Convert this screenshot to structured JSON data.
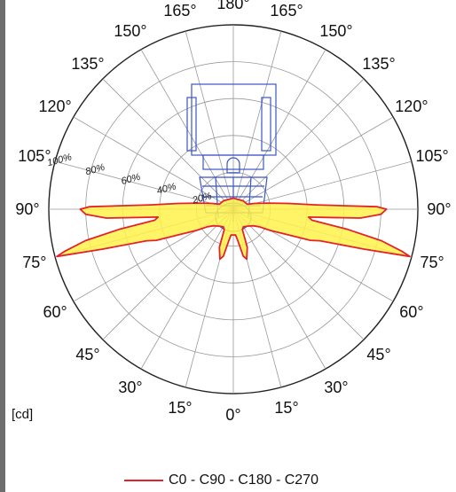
{
  "colors": {
    "curve_fill": "#fff24a",
    "curve_stroke": "#e4222a",
    "grid": "#9a9a9a",
    "luminaire": "#3b55c8"
  },
  "unit_label": "[cd]",
  "chart_data": {
    "type": "polar",
    "title": "",
    "angle_labels": [
      {
        "text": "0°",
        "deg": 0
      },
      {
        "text": "15°",
        "deg": -15
      },
      {
        "text": "30°",
        "deg": -30
      },
      {
        "text": "45°",
        "deg": -45
      },
      {
        "text": "60°",
        "deg": -60
      },
      {
        "text": "75°",
        "deg": -75
      },
      {
        "text": "90°",
        "deg": -90
      },
      {
        "text": "105°",
        "deg": -105
      },
      {
        "text": "120°",
        "deg": -120
      },
      {
        "text": "135°",
        "deg": -135
      },
      {
        "text": "150°",
        "deg": -150
      },
      {
        "text": "165°",
        "deg": -165
      },
      {
        "text": "180°",
        "deg": 180
      },
      {
        "text": "165°",
        "deg": 165
      },
      {
        "text": "150°",
        "deg": 150
      },
      {
        "text": "135°",
        "deg": 135
      },
      {
        "text": "120°",
        "deg": 120
      },
      {
        "text": "105°",
        "deg": 105
      },
      {
        "text": "90°",
        "deg": 90
      },
      {
        "text": "75°",
        "deg": 75
      },
      {
        "text": "60°",
        "deg": 60
      },
      {
        "text": "45°",
        "deg": 45
      },
      {
        "text": "30°",
        "deg": 30
      },
      {
        "text": "15°",
        "deg": 15
      }
    ],
    "ring_labels": [
      "20%",
      "40%",
      "60%",
      "80%",
      "100%"
    ],
    "ring_values": [
      0.2,
      0.4,
      0.6,
      0.8,
      1.0
    ],
    "series": [
      {
        "name": "C0 - C90 - C180 - C270",
        "points": [
          [
            0,
            0.14
          ],
          [
            5,
            0.14
          ],
          [
            8,
            0.17
          ],
          [
            12,
            0.26
          ],
          [
            15,
            0.28
          ],
          [
            20,
            0.22
          ],
          [
            24,
            0.12
          ],
          [
            30,
            0.11
          ],
          [
            40,
            0.12
          ],
          [
            50,
            0.14
          ],
          [
            56,
            0.17
          ],
          [
            60,
            0.23
          ],
          [
            65,
            0.33
          ],
          [
            68,
            0.45
          ],
          [
            70,
            0.5
          ],
          [
            73,
            0.74
          ],
          [
            75,
            0.99
          ],
          [
            76,
            0.94
          ],
          [
            78,
            0.82
          ],
          [
            80,
            0.63
          ],
          [
            82,
            0.43
          ],
          [
            84,
            0.41
          ],
          [
            86,
            0.69
          ],
          [
            88,
            0.8
          ],
          [
            90,
            0.83
          ],
          [
            91,
            0.78
          ],
          [
            93,
            0.45
          ],
          [
            96,
            0.3
          ],
          [
            100,
            0.19
          ],
          [
            105,
            0.12
          ],
          [
            110,
            0.08
          ],
          [
            130,
            0.07
          ],
          [
            180,
            0.06
          ]
        ]
      }
    ]
  }
}
